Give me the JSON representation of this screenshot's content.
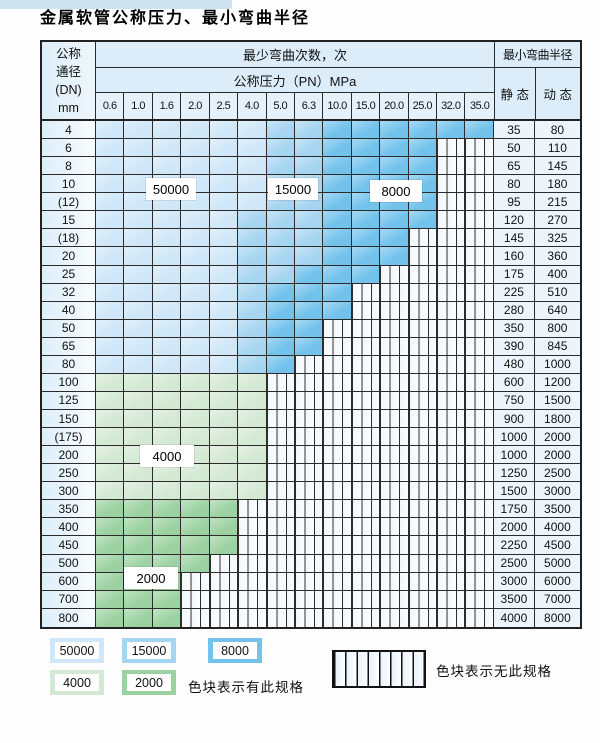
{
  "page": {
    "title": "金属软管公称压力、最小弯曲半径"
  },
  "colors": {
    "blue_light": "#cfe7f8",
    "blue_mid": "#a6d5f1",
    "blue_dark": "#72c2ec",
    "green_light": "#d4e9d4",
    "green_dark": "#9cd2a1"
  },
  "table": {
    "corner": {
      "line1": "公称",
      "line2": "通径",
      "line3": "(DN)",
      "line4": "mm"
    },
    "bend_cycles_header": "最少弯曲次数，次",
    "pressure_header": "公称压力（PN）MPa",
    "radius_header": "最小弯曲半径",
    "static_header": "静 态",
    "dynamic_header": "动 态",
    "pressure_columns": [
      "0.6",
      "1.0",
      "1.6",
      "2.0",
      "2.5",
      "4.0",
      "5.0",
      "6.3",
      "10.0",
      "15.0",
      "20.0",
      "25.0",
      "32.0",
      "35.0"
    ],
    "rows": [
      {
        "dn": "4",
        "static": "35",
        "dynamic": "80",
        "palette": "blue",
        "bands": [
          6,
          8,
          14
        ]
      },
      {
        "dn": "6",
        "static": "50",
        "dynamic": "110",
        "palette": "blue",
        "bands": [
          6,
          8,
          12
        ]
      },
      {
        "dn": "8",
        "static": "65",
        "dynamic": "145",
        "palette": "blue",
        "bands": [
          6,
          8,
          12
        ]
      },
      {
        "dn": "10",
        "static": "80",
        "dynamic": "180",
        "palette": "blue",
        "bands": [
          6,
          8,
          12
        ]
      },
      {
        "dn": "(12)",
        "static": "95",
        "dynamic": "215",
        "palette": "blue",
        "bands": [
          6,
          8,
          12
        ]
      },
      {
        "dn": "15",
        "static": "120",
        "dynamic": "270",
        "palette": "blue",
        "bands": [
          5,
          8,
          12
        ]
      },
      {
        "dn": "(18)",
        "static": "145",
        "dynamic": "325",
        "palette": "blue",
        "bands": [
          5,
          8,
          11
        ]
      },
      {
        "dn": "20",
        "static": "160",
        "dynamic": "360",
        "palette": "blue",
        "bands": [
          5,
          8,
          11
        ]
      },
      {
        "dn": "25",
        "static": "175",
        "dynamic": "400",
        "palette": "blue",
        "bands": [
          5,
          7,
          10
        ]
      },
      {
        "dn": "32",
        "static": "225",
        "dynamic": "510",
        "palette": "blue",
        "bands": [
          5,
          6,
          9
        ]
      },
      {
        "dn": "40",
        "static": "280",
        "dynamic": "640",
        "palette": "blue",
        "bands": [
          5,
          6,
          9
        ]
      },
      {
        "dn": "50",
        "static": "350",
        "dynamic": "800",
        "palette": "blue",
        "bands": [
          5,
          6,
          8
        ]
      },
      {
        "dn": "65",
        "static": "390",
        "dynamic": "845",
        "palette": "blue",
        "bands": [
          5,
          6,
          8
        ]
      },
      {
        "dn": "80",
        "static": "480",
        "dynamic": "1000",
        "palette": "blue",
        "bands": [
          5,
          6,
          7
        ]
      },
      {
        "dn": "100",
        "static": "600",
        "dynamic": "1200",
        "palette": "green-light",
        "bands": [
          6
        ]
      },
      {
        "dn": "125",
        "static": "750",
        "dynamic": "1500",
        "palette": "green-light",
        "bands": [
          6
        ]
      },
      {
        "dn": "150",
        "static": "900",
        "dynamic": "1800",
        "palette": "green-light",
        "bands": [
          6
        ]
      },
      {
        "dn": "(175)",
        "static": "1000",
        "dynamic": "2000",
        "palette": "green-light",
        "bands": [
          6
        ]
      },
      {
        "dn": "200",
        "static": "1000",
        "dynamic": "2000",
        "palette": "green-light",
        "bands": [
          6
        ]
      },
      {
        "dn": "250",
        "static": "1250",
        "dynamic": "2500",
        "palette": "green-light",
        "bands": [
          6
        ]
      },
      {
        "dn": "300",
        "static": "1500",
        "dynamic": "3000",
        "palette": "green-light",
        "bands": [
          6
        ]
      },
      {
        "dn": "350",
        "static": "1750",
        "dynamic": "3500",
        "palette": "green-dark",
        "bands": [
          5
        ]
      },
      {
        "dn": "400",
        "static": "2000",
        "dynamic": "4000",
        "palette": "green-dark",
        "bands": [
          5
        ]
      },
      {
        "dn": "450",
        "static": "2250",
        "dynamic": "4500",
        "palette": "green-dark",
        "bands": [
          5
        ]
      },
      {
        "dn": "500",
        "static": "2500",
        "dynamic": "5000",
        "palette": "green-dark",
        "bands": [
          4
        ]
      },
      {
        "dn": "600",
        "static": "3000",
        "dynamic": "6000",
        "palette": "green-dark",
        "bands": [
          3
        ]
      },
      {
        "dn": "700",
        "static": "3500",
        "dynamic": "7000",
        "palette": "green-dark",
        "bands": [
          3
        ]
      },
      {
        "dn": "800",
        "static": "4000",
        "dynamic": "8000",
        "palette": "green-dark",
        "bands": [
          3
        ]
      }
    ]
  },
  "zone_labels": {
    "z50000": "50000",
    "z15000": "15000",
    "z8000": "8000",
    "z4000": "4000",
    "z2000": "2000"
  },
  "legend": {
    "items": [
      {
        "label": "50000",
        "color_key": "blue_light"
      },
      {
        "label": "15000",
        "color_key": "blue_mid"
      },
      {
        "label": "8000",
        "color_key": "blue_dark"
      },
      {
        "label": "4000",
        "color_key": "green_light"
      },
      {
        "label": "2000",
        "color_key": "green_dark"
      }
    ],
    "has_spec_note": "色块表示有此规格",
    "no_spec_note": "色块表示无此规格"
  }
}
